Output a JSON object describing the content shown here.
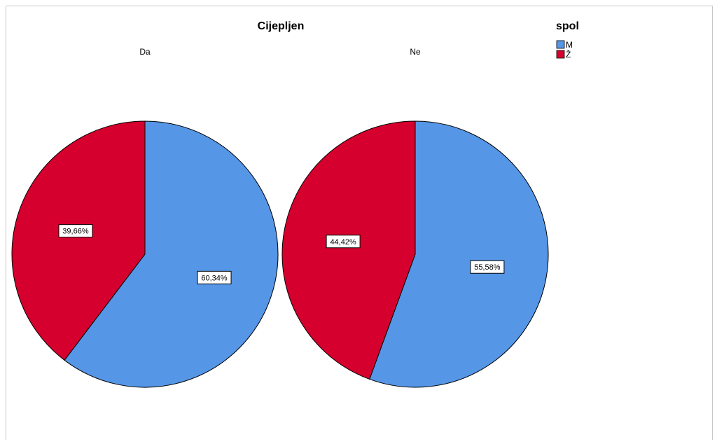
{
  "chart_data": {
    "type": "pie",
    "title": "Cijepljen",
    "panels": [
      {
        "name": "Da",
        "slices": [
          {
            "category": "M",
            "percent": 60.34,
            "label": "60,34%"
          },
          {
            "category": "Ž",
            "percent": 39.66,
            "label": "39,66%"
          }
        ]
      },
      {
        "name": "Ne",
        "slices": [
          {
            "category": "M",
            "percent": 55.58,
            "label": "55,58%"
          },
          {
            "category": "Ž",
            "percent": 44.42,
            "label": "44,42%"
          }
        ]
      }
    ],
    "legend": {
      "title": "spol",
      "placement": "top-right",
      "items": [
        {
          "label": "M",
          "color": "#5596e6"
        },
        {
          "label": "Ž",
          "color": "#d5002e"
        }
      ]
    }
  }
}
